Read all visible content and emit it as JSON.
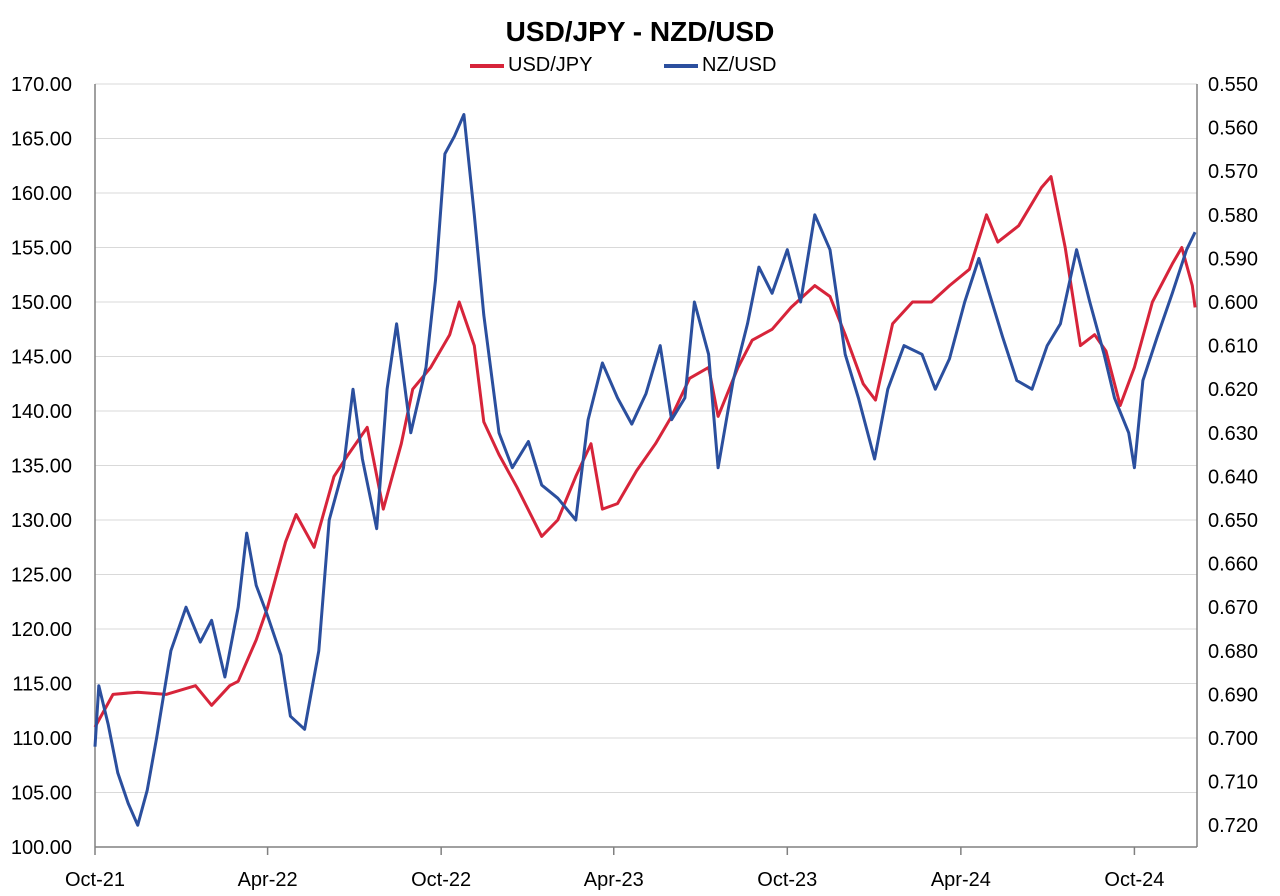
{
  "chart_data": {
    "type": "line",
    "title": "USD/JPY - NZD/USD",
    "legend_position": "top-center",
    "grid": true,
    "colors": {
      "usdjpy": "#d7243a",
      "nzusd": "#2b4f9e",
      "grid": "#d9d9d9",
      "axis": "#808080"
    },
    "x_ticks": [
      "Oct-21",
      "Apr-22",
      "Oct-22",
      "Apr-23",
      "Oct-23",
      "Apr-24",
      "Oct-24"
    ],
    "x_range": [
      "2021-10-01",
      "2024-12-06"
    ],
    "y_left": {
      "min": 100,
      "max": 170,
      "step": 5,
      "ticks": [
        "170.00",
        "165.00",
        "160.00",
        "155.00",
        "150.00",
        "145.00",
        "140.00",
        "135.00",
        "130.00",
        "125.00",
        "120.00",
        "115.00",
        "110.00",
        "105.00",
        "100.00"
      ]
    },
    "y_right": {
      "min": 0.55,
      "max": 0.725,
      "inverted": true,
      "ticks": [
        "0.550",
        "0.560",
        "0.570",
        "0.580",
        "0.590",
        "0.600",
        "0.610",
        "0.620",
        "0.630",
        "0.640",
        "0.650",
        "0.660",
        "0.670",
        "0.680",
        "0.690",
        "0.700",
        "0.710",
        "0.720"
      ]
    },
    "series": [
      {
        "name": "USD/JPY",
        "axis": "left",
        "color": "#d7243a",
        "points": [
          [
            "2021-10-01",
            111.0
          ],
          [
            "2021-10-20",
            114.0
          ],
          [
            "2021-11-15",
            114.2
          ],
          [
            "2021-12-15",
            114.0
          ],
          [
            "2022-01-15",
            114.8
          ],
          [
            "2022-02-01",
            113.0
          ],
          [
            "2022-02-20",
            114.8
          ],
          [
            "2022-03-01",
            115.2
          ],
          [
            "2022-03-20",
            119.0
          ],
          [
            "2022-04-01",
            122.0
          ],
          [
            "2022-04-20",
            128.0
          ],
          [
            "2022-05-01",
            130.5
          ],
          [
            "2022-05-20",
            127.5
          ],
          [
            "2022-06-10",
            134.0
          ],
          [
            "2022-06-25",
            136.0
          ],
          [
            "2022-07-15",
            138.5
          ],
          [
            "2022-08-01",
            131.0
          ],
          [
            "2022-08-20",
            137.0
          ],
          [
            "2022-09-01",
            142.0
          ],
          [
            "2022-09-20",
            144.0
          ],
          [
            "2022-10-10",
            147.0
          ],
          [
            "2022-10-20",
            150.0
          ],
          [
            "2022-11-05",
            146.0
          ],
          [
            "2022-11-15",
            139.0
          ],
          [
            "2022-12-01",
            136.0
          ],
          [
            "2022-12-20",
            133.0
          ],
          [
            "2023-01-15",
            128.5
          ],
          [
            "2023-02-01",
            130.0
          ],
          [
            "2023-02-20",
            134.0
          ],
          [
            "2023-03-08",
            137.0
          ],
          [
            "2023-03-20",
            131.0
          ],
          [
            "2023-04-05",
            131.5
          ],
          [
            "2023-04-25",
            134.5
          ],
          [
            "2023-05-15",
            137.0
          ],
          [
            "2023-06-01",
            139.5
          ],
          [
            "2023-06-20",
            143.0
          ],
          [
            "2023-07-10",
            144.0
          ],
          [
            "2023-07-20",
            139.5
          ],
          [
            "2023-08-10",
            144.0
          ],
          [
            "2023-08-25",
            146.5
          ],
          [
            "2023-09-15",
            147.5
          ],
          [
            "2023-10-05",
            149.5
          ],
          [
            "2023-10-30",
            151.5
          ],
          [
            "2023-11-15",
            150.5
          ],
          [
            "2023-12-01",
            147.0
          ],
          [
            "2023-12-20",
            142.5
          ],
          [
            "2024-01-02",
            141.0
          ],
          [
            "2024-01-20",
            148.0
          ],
          [
            "2024-02-10",
            150.0
          ],
          [
            "2024-03-01",
            150.0
          ],
          [
            "2024-03-20",
            151.5
          ],
          [
            "2024-04-10",
            153.0
          ],
          [
            "2024-04-28",
            158.0
          ],
          [
            "2024-05-10",
            155.5
          ],
          [
            "2024-06-01",
            157.0
          ],
          [
            "2024-06-25",
            160.5
          ],
          [
            "2024-07-05",
            161.5
          ],
          [
            "2024-07-20",
            155.0
          ],
          [
            "2024-08-05",
            146.0
          ],
          [
            "2024-08-20",
            147.0
          ],
          [
            "2024-09-01",
            145.5
          ],
          [
            "2024-09-16",
            140.5
          ],
          [
            "2024-10-01",
            144.0
          ],
          [
            "2024-10-20",
            150.0
          ],
          [
            "2024-11-10",
            153.5
          ],
          [
            "2024-11-20",
            155.0
          ],
          [
            "2024-12-01",
            151.5
          ],
          [
            "2024-12-04",
            149.5
          ]
        ]
      },
      {
        "name": "NZ/USD",
        "axis": "right",
        "color": "#2b4f9e",
        "points": [
          [
            "2021-10-01",
            0.702
          ],
          [
            "2021-10-05",
            0.688
          ],
          [
            "2021-10-15",
            0.697
          ],
          [
            "2021-10-25",
            0.708
          ],
          [
            "2021-11-05",
            0.715
          ],
          [
            "2021-11-15",
            0.72
          ],
          [
            "2021-11-25",
            0.712
          ],
          [
            "2021-12-05",
            0.7
          ],
          [
            "2021-12-20",
            0.68
          ],
          [
            "2022-01-05",
            0.67
          ],
          [
            "2022-01-20",
            0.678
          ],
          [
            "2022-02-01",
            0.673
          ],
          [
            "2022-02-15",
            0.686
          ],
          [
            "2022-03-01",
            0.67
          ],
          [
            "2022-03-10",
            0.653
          ],
          [
            "2022-03-20",
            0.665
          ],
          [
            "2022-04-01",
            0.672
          ],
          [
            "2022-04-15",
            0.681
          ],
          [
            "2022-04-25",
            0.695
          ],
          [
            "2022-05-10",
            0.698
          ],
          [
            "2022-05-25",
            0.68
          ],
          [
            "2022-06-05",
            0.65
          ],
          [
            "2022-06-20",
            0.638
          ],
          [
            "2022-06-30",
            0.62
          ],
          [
            "2022-07-10",
            0.636
          ],
          [
            "2022-07-25",
            0.652
          ],
          [
            "2022-08-05",
            0.62
          ],
          [
            "2022-08-15",
            0.605
          ],
          [
            "2022-08-30",
            0.63
          ],
          [
            "2022-09-15",
            0.615
          ],
          [
            "2022-09-25",
            0.595
          ],
          [
            "2022-10-05",
            0.566
          ],
          [
            "2022-10-15",
            0.562
          ],
          [
            "2022-10-25",
            0.557
          ],
          [
            "2022-11-05",
            0.58
          ],
          [
            "2022-11-15",
            0.603
          ],
          [
            "2022-12-01",
            0.63
          ],
          [
            "2022-12-15",
            0.638
          ],
          [
            "2023-01-01",
            0.632
          ],
          [
            "2023-01-15",
            0.642
          ],
          [
            "2023-02-01",
            0.645
          ],
          [
            "2023-02-20",
            0.65
          ],
          [
            "2023-03-05",
            0.627
          ],
          [
            "2023-03-20",
            0.614
          ],
          [
            "2023-04-05",
            0.622
          ],
          [
            "2023-04-20",
            0.628
          ],
          [
            "2023-05-05",
            0.621
          ],
          [
            "2023-05-20",
            0.61
          ],
          [
            "2023-06-01",
            0.627
          ],
          [
            "2023-06-15",
            0.622
          ],
          [
            "2023-06-25",
            0.6
          ],
          [
            "2023-07-10",
            0.612
          ],
          [
            "2023-07-20",
            0.638
          ],
          [
            "2023-08-05",
            0.618
          ],
          [
            "2023-08-20",
            0.605
          ],
          [
            "2023-09-01",
            0.592
          ],
          [
            "2023-09-15",
            0.598
          ],
          [
            "2023-10-01",
            0.588
          ],
          [
            "2023-10-15",
            0.6
          ],
          [
            "2023-10-30",
            0.58
          ],
          [
            "2023-11-15",
            0.588
          ],
          [
            "2023-12-01",
            0.612
          ],
          [
            "2023-12-15",
            0.622
          ],
          [
            "2024-01-01",
            0.636
          ],
          [
            "2024-01-15",
            0.62
          ],
          [
            "2024-02-01",
            0.61
          ],
          [
            "2024-02-20",
            0.612
          ],
          [
            "2024-03-05",
            0.62
          ],
          [
            "2024-03-20",
            0.613
          ],
          [
            "2024-04-05",
            0.6
          ],
          [
            "2024-04-20",
            0.59
          ],
          [
            "2024-05-01",
            0.598
          ],
          [
            "2024-05-15",
            0.608
          ],
          [
            "2024-05-30",
            0.618
          ],
          [
            "2024-06-15",
            0.62
          ],
          [
            "2024-07-01",
            0.61
          ],
          [
            "2024-07-15",
            0.605
          ],
          [
            "2024-08-01",
            0.588
          ],
          [
            "2024-08-15",
            0.6
          ],
          [
            "2024-08-30",
            0.612
          ],
          [
            "2024-09-10",
            0.622
          ],
          [
            "2024-09-25",
            0.63
          ],
          [
            "2024-10-01",
            0.638
          ],
          [
            "2024-10-10",
            0.618
          ],
          [
            "2024-10-25",
            0.608
          ],
          [
            "2024-11-10",
            0.598
          ],
          [
            "2024-11-25",
            0.588
          ],
          [
            "2024-12-04",
            0.584
          ]
        ]
      }
    ]
  }
}
